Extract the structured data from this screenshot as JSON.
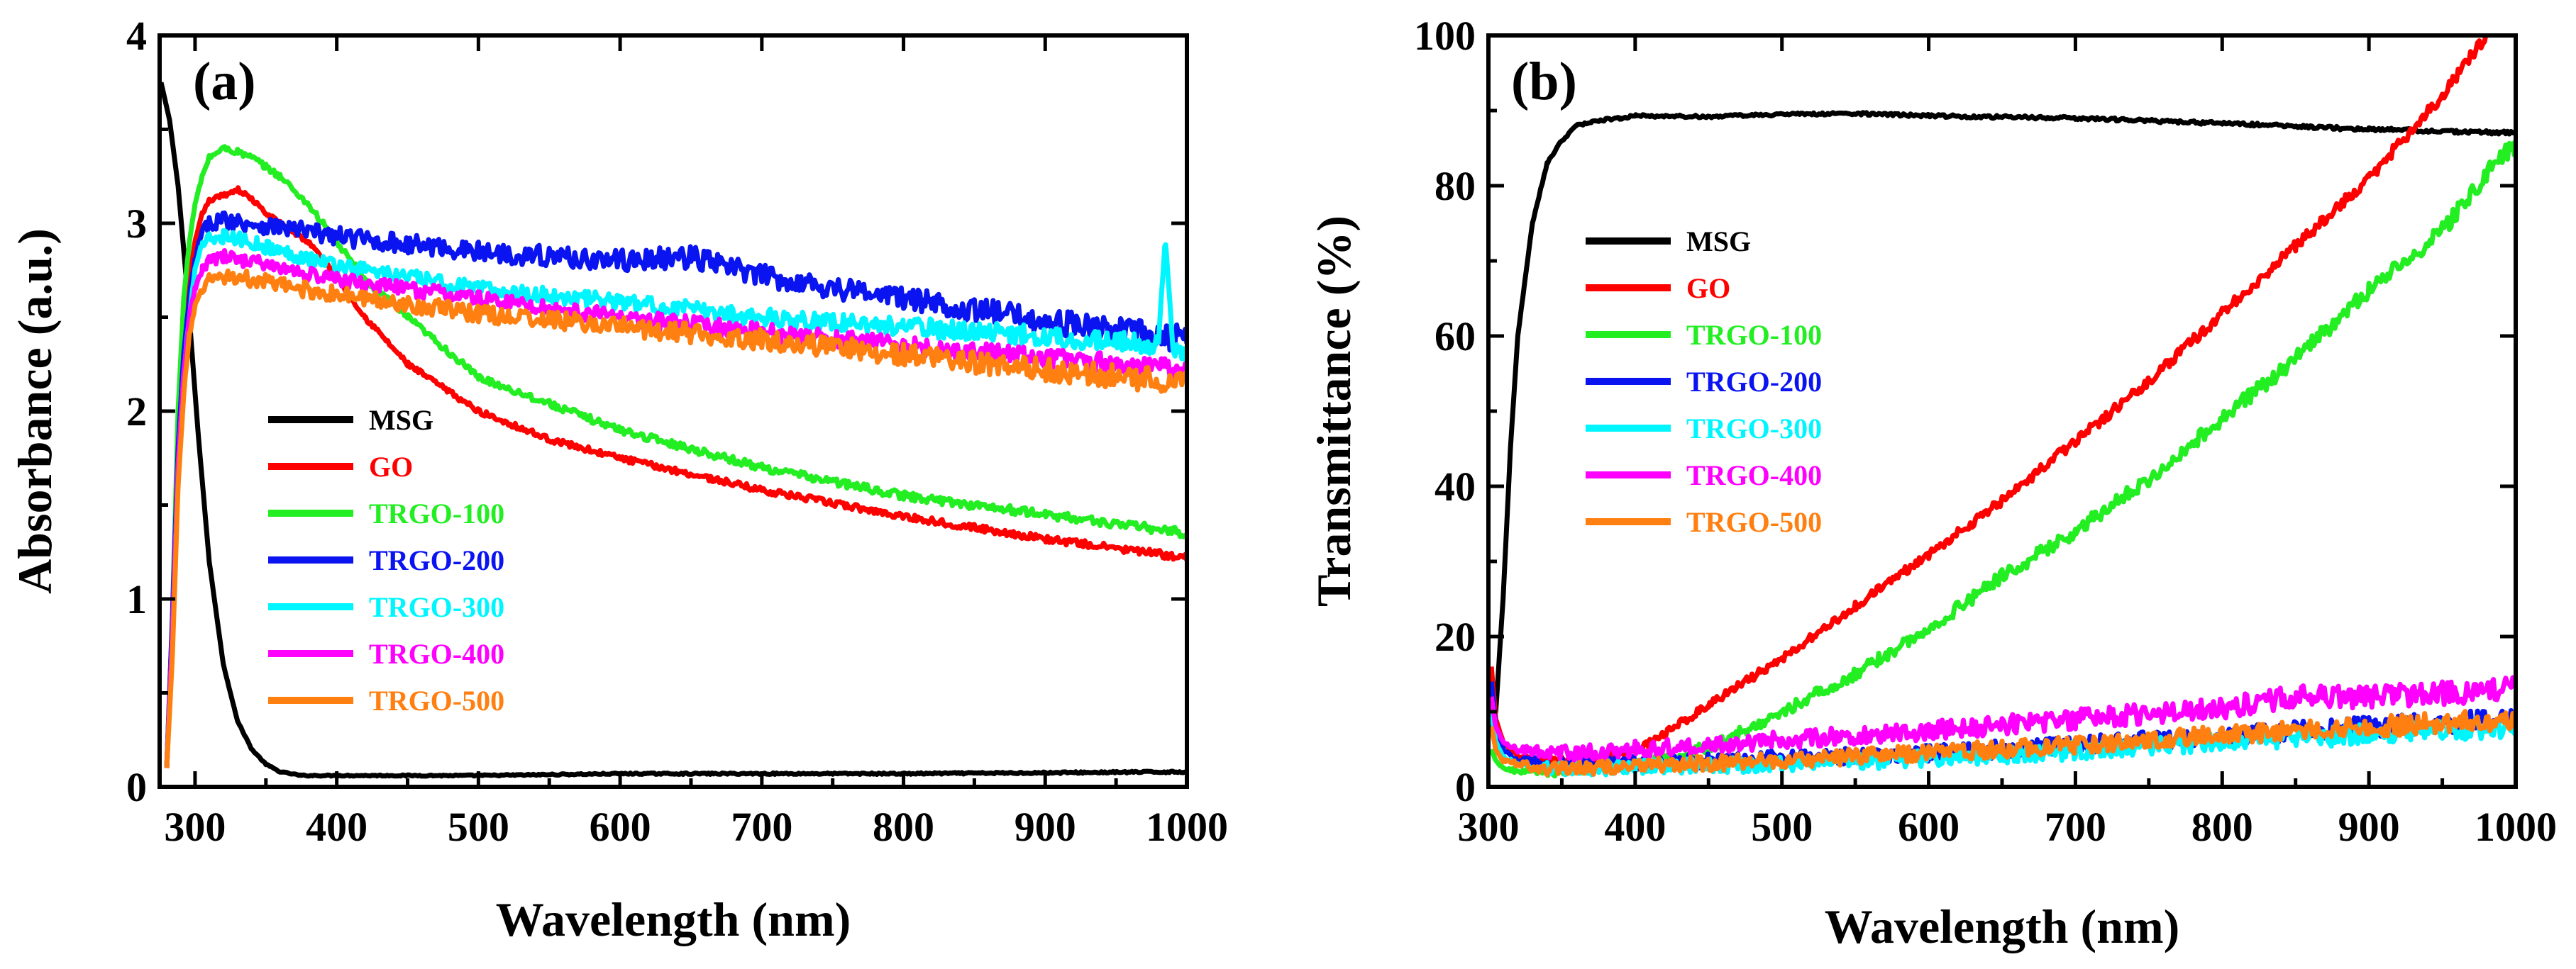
{
  "colors": {
    "MSG": "#000000",
    "GO": "#ff0000",
    "TRGO-100": "#22ee22",
    "TRGO-200": "#0a14f0",
    "TRGO-300": "#00f6ff",
    "TRGO-400": "#ff00ff",
    "TRGO-500": "#ff7f10"
  },
  "chart_data": [
    {
      "type": "line",
      "panel_label": "(a)",
      "xlabel": "Wavelength (nm)",
      "ylabel": "Absorbance (a.u.)",
      "xlim": [
        275,
        1000
      ],
      "ylim": [
        0,
        4
      ],
      "xticks": [
        300,
        400,
        500,
        600,
        700,
        800,
        900,
        1000
      ],
      "yticks": [
        0,
        1,
        2,
        3,
        4
      ],
      "legend_position": "center-left",
      "noise": {
        "MSG": 0.003,
        "GO": 0.012,
        "TRGO-100": 0.015,
        "TRGO-200": 0.045,
        "TRGO-300": 0.035,
        "TRGO-400": 0.035,
        "TRGO-500": 0.04
      },
      "series": [
        {
          "name": "MSG",
          "x": [
            276,
            282,
            288,
            295,
            302,
            310,
            320,
            330,
            340,
            350,
            360,
            375,
            400,
            500,
            600,
            800,
            1000
          ],
          "y": [
            3.75,
            3.55,
            3.2,
            2.6,
            1.9,
            1.2,
            0.65,
            0.35,
            0.2,
            0.12,
            0.08,
            0.06,
            0.06,
            0.06,
            0.07,
            0.07,
            0.08
          ]
        },
        {
          "name": "GO",
          "x": [
            280,
            284,
            288,
            292,
            296,
            300,
            305,
            310,
            320,
            330,
            340,
            350,
            360,
            380,
            400,
            420,
            450,
            500,
            550,
            600,
            700,
            800,
            900,
            1000
          ],
          "y": [
            0.1,
            0.8,
            1.8,
            2.4,
            2.7,
            2.9,
            3.05,
            3.12,
            3.15,
            3.18,
            3.13,
            3.05,
            3.0,
            2.9,
            2.72,
            2.5,
            2.25,
            2.0,
            1.85,
            1.75,
            1.58,
            1.44,
            1.32,
            1.22
          ]
        },
        {
          "name": "TRGO-100",
          "x": [
            280,
            284,
            288,
            292,
            296,
            300,
            305,
            310,
            320,
            330,
            340,
            350,
            360,
            380,
            400,
            420,
            450,
            500,
            600,
            700,
            800,
            900,
            1000
          ],
          "y": [
            0.1,
            0.9,
            2.0,
            2.6,
            2.9,
            3.1,
            3.25,
            3.35,
            3.4,
            3.38,
            3.35,
            3.3,
            3.25,
            3.1,
            2.9,
            2.7,
            2.5,
            2.18,
            1.9,
            1.7,
            1.55,
            1.45,
            1.35
          ]
        },
        {
          "name": "TRGO-200",
          "x": [
            280,
            284,
            288,
            292,
            296,
            300,
            305,
            310,
            320,
            340,
            360,
            400,
            500,
            600,
            650,
            700,
            800,
            900,
            1000
          ],
          "y": [
            0.1,
            0.9,
            1.8,
            2.3,
            2.6,
            2.8,
            2.95,
            3.0,
            3.02,
            3.0,
            2.98,
            2.93,
            2.85,
            2.8,
            2.82,
            2.72,
            2.6,
            2.48,
            2.38
          ]
        },
        {
          "name": "TRGO-300",
          "x": [
            280,
            284,
            288,
            292,
            296,
            300,
            305,
            310,
            320,
            340,
            360,
            400,
            500,
            600,
            700,
            800,
            900,
            980,
            985,
            990,
            1000
          ],
          "y": [
            0.1,
            0.8,
            1.7,
            2.2,
            2.5,
            2.75,
            2.88,
            2.92,
            2.93,
            2.9,
            2.85,
            2.78,
            2.65,
            2.58,
            2.5,
            2.45,
            2.4,
            2.35,
            2.9,
            2.35,
            2.3
          ]
        },
        {
          "name": "TRGO-400",
          "x": [
            280,
            284,
            288,
            292,
            296,
            300,
            305,
            310,
            320,
            340,
            360,
            400,
            500,
            600,
            700,
            800,
            900,
            1000
          ],
          "y": [
            0.1,
            0.8,
            1.7,
            2.2,
            2.5,
            2.65,
            2.75,
            2.8,
            2.82,
            2.8,
            2.76,
            2.7,
            2.6,
            2.5,
            2.42,
            2.35,
            2.28,
            2.22
          ]
        },
        {
          "name": "TRGO-500",
          "x": [
            280,
            284,
            288,
            292,
            296,
            300,
            305,
            310,
            320,
            340,
            360,
            400,
            500,
            600,
            700,
            800,
            900,
            1000
          ],
          "y": [
            0.1,
            0.7,
            1.6,
            2.1,
            2.4,
            2.55,
            2.65,
            2.7,
            2.72,
            2.7,
            2.67,
            2.62,
            2.52,
            2.45,
            2.38,
            2.3,
            2.22,
            2.15
          ]
        }
      ]
    },
    {
      "type": "line",
      "panel_label": "(b)",
      "xlabel": "Wavelength (nm)",
      "ylabel": "Transmittance (%)",
      "xlim": [
        300,
        1000
      ],
      "ylim": [
        0,
        100
      ],
      "xticks": [
        300,
        400,
        500,
        600,
        700,
        800,
        900,
        1000
      ],
      "yticks": [
        0,
        20,
        40,
        60,
        80,
        100
      ],
      "legend_position": "upper-left",
      "noise": {
        "MSG": 0.15,
        "GO": 0.5,
        "TRGO-100": 0.7,
        "TRGO-200": 0.9,
        "TRGO-300": 0.9,
        "TRGO-400": 1.0,
        "TRGO-500": 0.9
      },
      "series": [
        {
          "name": "MSG",
          "x": [
            302,
            305,
            310,
            315,
            320,
            330,
            340,
            350,
            360,
            370,
            380,
            390,
            400,
            450,
            500,
            550,
            600,
            700,
            800,
            900,
            1000
          ],
          "y": [
            8,
            10,
            25,
            45,
            60,
            75,
            83,
            86,
            88,
            88.5,
            88.8,
            89,
            89.3,
            89.2,
            89.5,
            89.6,
            89.3,
            89.0,
            88.3,
            87.5,
            87.0
          ]
        },
        {
          "name": "GO",
          "x": [
            302,
            305,
            310,
            320,
            340,
            360,
            380,
            400,
            420,
            450,
            500,
            550,
            600,
            650,
            700,
            750,
            800,
            850,
            900,
            950,
            980
          ],
          "y": [
            16,
            9,
            6,
            4,
            3.5,
            3.5,
            4,
            5,
            7,
            11,
            17,
            24,
            31,
            38,
            46,
            54,
            63,
            72,
            81,
            92,
            100
          ]
        },
        {
          "name": "TRGO-100",
          "x": [
            302,
            305,
            310,
            320,
            340,
            360,
            400,
            430,
            460,
            500,
            550,
            600,
            650,
            700,
            750,
            800,
            850,
            900,
            950,
            990,
            1000
          ],
          "y": [
            5,
            3.5,
            2.5,
            2,
            2,
            2.5,
            3,
            4,
            6,
            10,
            15,
            21,
            28,
            34,
            41,
            49,
            57,
            66,
            74,
            84,
            85
          ]
        },
        {
          "name": "TRGO-200",
          "x": [
            302,
            305,
            310,
            320,
            340,
            360,
            400,
            500,
            600,
            700,
            800,
            900,
            1000
          ],
          "y": [
            14,
            8,
            5,
            3.5,
            3,
            3,
            3.1,
            3.8,
            4.5,
            5.5,
            6.8,
            8,
            9
          ]
        },
        {
          "name": "TRGO-300",
          "x": [
            302,
            305,
            310,
            320,
            340,
            360,
            400,
            500,
            600,
            700,
            800,
            900,
            1000
          ],
          "y": [
            10,
            6,
            4,
            3,
            2.5,
            2.5,
            2.6,
            3,
            3.8,
            4.8,
            6,
            7,
            8
          ]
        },
        {
          "name": "TRGO-400",
          "x": [
            302,
            305,
            310,
            320,
            340,
            360,
            400,
            500,
            600,
            700,
            800,
            850,
            900,
            1000
          ],
          "y": [
            12,
            8,
            6,
            5,
            4.5,
            4.5,
            5,
            6.2,
            7.5,
            9,
            10.5,
            12,
            12,
            13
          ]
        },
        {
          "name": "TRGO-500",
          "x": [
            302,
            305,
            310,
            320,
            340,
            360,
            400,
            500,
            600,
            700,
            800,
            900,
            1000
          ],
          "y": [
            8,
            5,
            3.5,
            3,
            2.5,
            2.5,
            2.8,
            3.5,
            4.5,
            5.5,
            7,
            8,
            9
          ]
        }
      ]
    }
  ]
}
